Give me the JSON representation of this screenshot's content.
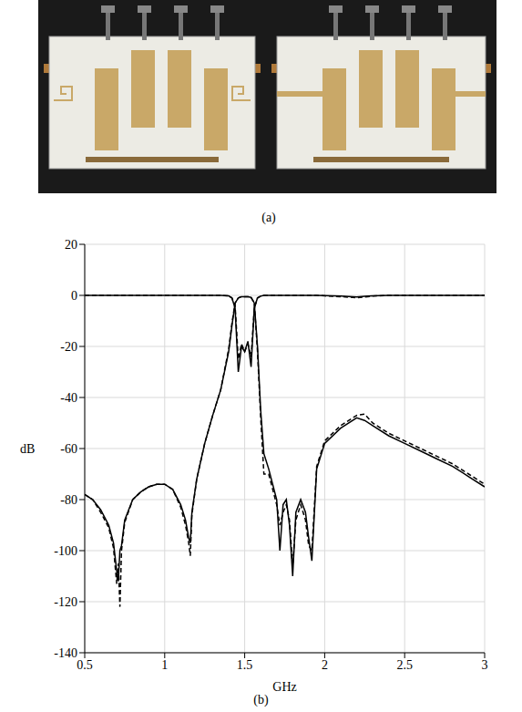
{
  "photo_panel": {
    "label": "(a)"
  },
  "chart_data": {
    "type": "line",
    "caption": "(b)",
    "xlabel": "GHz",
    "ylabel": "dB",
    "xlim": [
      0.5,
      3
    ],
    "xticks": [
      0.5,
      1,
      1.5,
      2,
      2.5,
      3
    ],
    "ylim": [
      -140,
      20
    ],
    "yticks": [
      -140,
      -120,
      -100,
      -80,
      -60,
      -40,
      -20,
      0,
      20
    ],
    "grid": true,
    "x": [
      0.5,
      0.55,
      0.6,
      0.65,
      0.68,
      0.7,
      0.71,
      0.72,
      0.73,
      0.75,
      0.8,
      0.85,
      0.9,
      0.95,
      1.0,
      1.05,
      1.1,
      1.13,
      1.15,
      1.16,
      1.17,
      1.2,
      1.25,
      1.3,
      1.35,
      1.4,
      1.42,
      1.44,
      1.46,
      1.48,
      1.5,
      1.52,
      1.54,
      1.56,
      1.58,
      1.6,
      1.62,
      1.65,
      1.7,
      1.72,
      1.74,
      1.76,
      1.78,
      1.8,
      1.82,
      1.85,
      1.88,
      1.9,
      1.92,
      1.95,
      2.0,
      2.1,
      2.2,
      2.25,
      2.3,
      2.4,
      2.5,
      2.6,
      2.7,
      2.8,
      2.9,
      3.0
    ],
    "series": [
      {
        "color": "#000000",
        "line_style": "solid",
        "values": [
          -78,
          -80,
          -84,
          -90,
          -97,
          -108,
          -112,
          -100,
          -98,
          -88,
          -80,
          -77,
          -75,
          -74,
          -74,
          -76,
          -82,
          -88,
          -95,
          -97,
          -85,
          -72,
          -58,
          -47,
          -37,
          -22,
          -12,
          -3,
          -1,
          -0.5,
          -0.5,
          -0.5,
          -0.8,
          -3,
          -20,
          -45,
          -62,
          -68,
          -80,
          -100,
          -82,
          -80,
          -90,
          -110,
          -85,
          -80,
          -85,
          -95,
          -104,
          -68,
          -58,
          -52,
          -48,
          -49,
          -51,
          -55,
          -58,
          -61,
          -64,
          -67,
          -71,
          -75
        ]
      },
      {
        "color": "#000000",
        "line_style": "dashed",
        "values": [
          -78,
          -80,
          -85,
          -91,
          -99,
          -113,
          -105,
          -122,
          -100,
          -89,
          -80,
          -77,
          -75,
          -74,
          -74,
          -76,
          -83,
          -90,
          -97,
          -102,
          -86,
          -72,
          -58,
          -47,
          -37,
          -21,
          -11,
          -3,
          -1,
          -0.5,
          -0.5,
          -0.5,
          -0.8,
          -3,
          -22,
          -48,
          -70,
          -70,
          -82,
          -90,
          -85,
          -82,
          -88,
          -106,
          -88,
          -82,
          -88,
          -98,
          -100,
          -67,
          -57,
          -51,
          -47,
          -46.5,
          -50,
          -54,
          -57,
          -60,
          -63,
          -66,
          -70,
          -74
        ]
      },
      {
        "color": "#000000",
        "line_style": "solid",
        "values": [
          0,
          0,
          0,
          0,
          0,
          0,
          0,
          0,
          0,
          0,
          0,
          0,
          0,
          0,
          0,
          0,
          0,
          0,
          0,
          0,
          0,
          0,
          0,
          0,
          0,
          -0.2,
          -1,
          -5,
          -30,
          -20,
          -22,
          -18,
          -28,
          -5,
          -1,
          -0.3,
          0,
          0,
          0,
          0,
          0,
          0,
          0,
          0,
          0,
          0,
          0,
          0,
          0,
          0,
          -0.1,
          -0.3,
          -0.6,
          -0.4,
          -0.2,
          0,
          0,
          0,
          0,
          0,
          0,
          0
        ]
      },
      {
        "color": "#000000",
        "line_style": "dashed",
        "values": [
          0,
          0,
          0,
          0,
          0,
          0,
          0,
          0,
          0,
          0,
          0,
          0,
          0,
          0,
          0,
          0,
          0,
          0,
          0,
          0,
          0,
          0,
          0,
          0,
          0,
          -0.2,
          -1,
          -4,
          -25,
          -19,
          -22,
          -19,
          -24,
          -5,
          -1,
          -0.3,
          0,
          0,
          0,
          0,
          0,
          0,
          0,
          0,
          0,
          0,
          0,
          0,
          0,
          0,
          -0.2,
          -0.5,
          -0.9,
          -0.6,
          -0.3,
          0,
          0,
          0,
          0,
          0,
          0,
          0
        ]
      }
    ]
  }
}
